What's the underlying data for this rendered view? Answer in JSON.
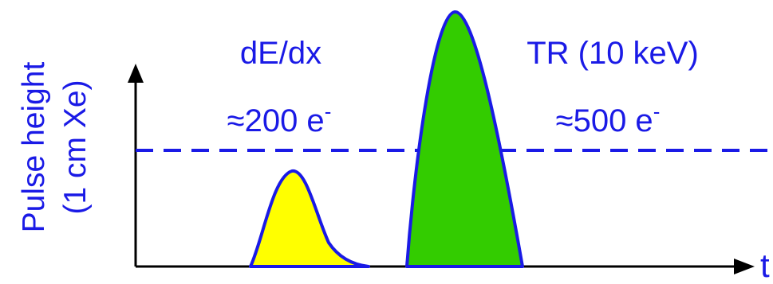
{
  "colors": {
    "text": "#1a1ae6",
    "pulse_outline": "#1a1ae6",
    "axis": "#000000",
    "threshold": "#1a1ae6",
    "dedx_fill": "#ffff00",
    "tr_fill": "#33cc00"
  },
  "y_axis": {
    "line1": "Pulse height",
    "line2": "(1 cm Xe)"
  },
  "x_axis": {
    "label": "t"
  },
  "dedx_pulse": {
    "title": "dE/dx",
    "charge_prefix": "≈200 e",
    "charge_superscript": "-"
  },
  "tr_pulse": {
    "title": "TR (10 keV)",
    "charge_prefix": "≈500 e",
    "charge_superscript": "-"
  },
  "threshold": {
    "style": "dashed"
  }
}
